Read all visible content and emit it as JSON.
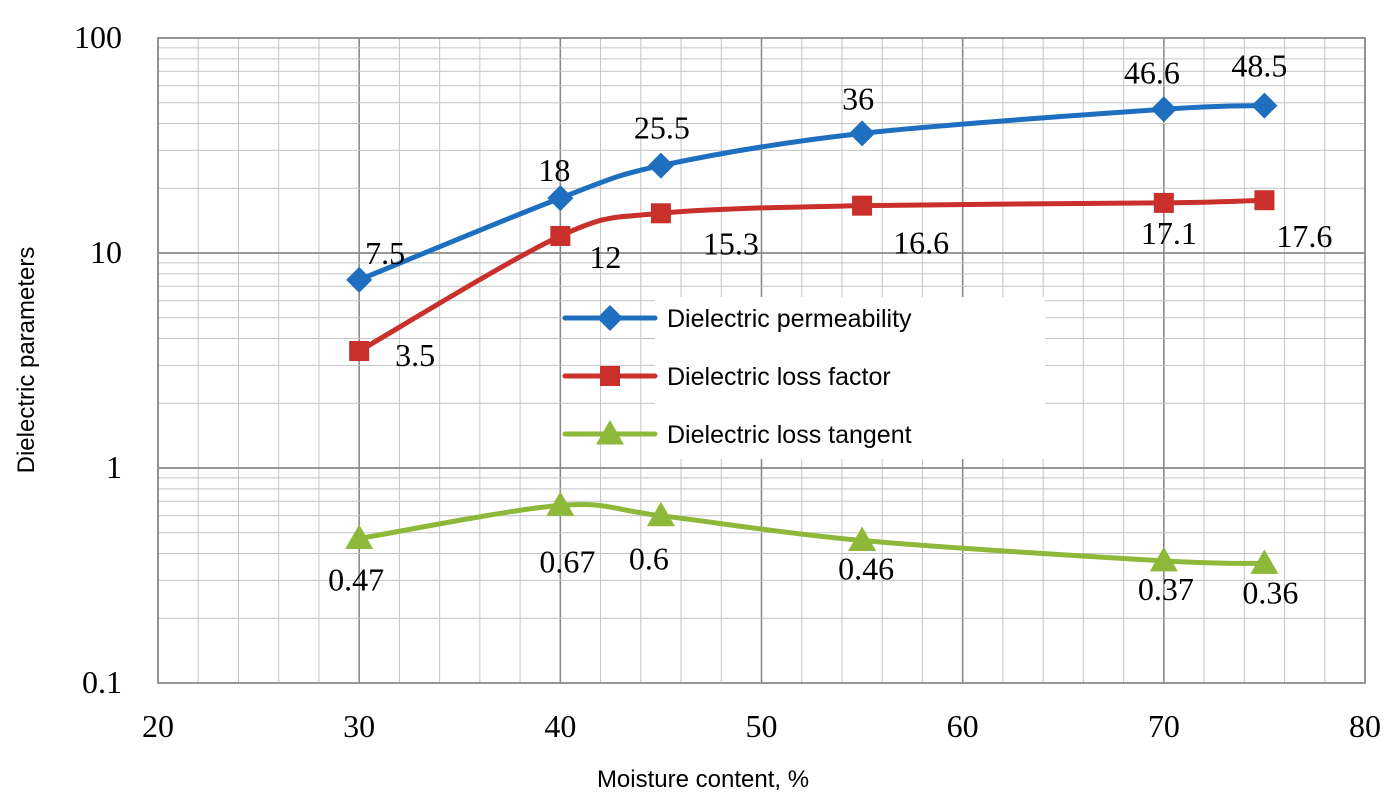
{
  "chart_data": {
    "type": "line",
    "title": "",
    "xlabel": "Moisture content, %",
    "ylabel": "Dielectric parameters",
    "xlim": [
      20,
      80
    ],
    "ylim": [
      0.1,
      100
    ],
    "yscale": "log",
    "grid": true,
    "x_ticks": [
      "20",
      "30",
      "40",
      "50",
      "60",
      "70",
      "80"
    ],
    "y_ticks": [
      "0.1",
      "1",
      "10",
      "100"
    ],
    "legend_position": "center",
    "x": [
      30,
      40,
      45,
      55,
      70,
      75
    ],
    "series": [
      {
        "name": "Dielectric permeability",
        "color": "#1F6FC0",
        "marker": "diamond",
        "values": [
          7.5,
          18,
          25.5,
          36,
          46.6,
          48.5
        ],
        "labels": [
          "7.5",
          "18",
          "25.5",
          "36",
          "46.6",
          "48.5"
        ]
      },
      {
        "name": "Dielectric loss factor",
        "color": "#C9302C",
        "marker": "square",
        "values": [
          3.5,
          12,
          15.3,
          16.6,
          17.1,
          17.6
        ],
        "labels": [
          "3.5",
          "12",
          "15.3",
          "16.6",
          "17.1",
          "17.6"
        ]
      },
      {
        "name": "Dielectric loss tangent",
        "color": "#8DB83A",
        "marker": "triangle",
        "values": [
          0.47,
          0.67,
          0.6,
          0.46,
          0.37,
          0.36
        ],
        "labels": [
          "0.47",
          "0.67",
          "0.6",
          "0.46",
          "0.37",
          "0.36"
        ]
      }
    ]
  }
}
